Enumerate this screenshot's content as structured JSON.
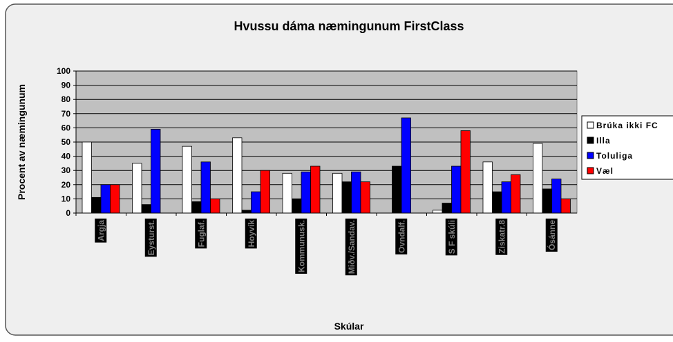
{
  "chart_data": {
    "type": "bar",
    "title": "Hvussu dáma næmingunum FirstClass",
    "x_label": "Skúlar",
    "y_label": "Procent av næmingunum",
    "categories": [
      "Argja",
      "Eysturst.",
      "Fuglaf.",
      "Hoyvík",
      "Kommunusk.",
      "Miðv./Sandav.",
      "Ovndalf.",
      "S F skúli",
      "Ziskatr.8",
      "Ósánne"
    ],
    "series": [
      {
        "name": "Brúka ikki FC",
        "color": "#ffffff",
        "values": [
          50,
          35,
          47,
          53,
          28,
          28,
          0,
          2,
          36,
          49
        ]
      },
      {
        "name": "Illa",
        "color": "#000000",
        "values": [
          11,
          6,
          8,
          2,
          10,
          22,
          33,
          7,
          15,
          17
        ]
      },
      {
        "name": "Toluliga",
        "color": "#0000ff",
        "values": [
          20,
          59,
          36,
          15,
          29,
          29,
          67,
          33,
          22,
          24
        ]
      },
      {
        "name": "Væl",
        "color": "#ff0000",
        "values": [
          20,
          0,
          10,
          30,
          33,
          22,
          0,
          58,
          27,
          10
        ]
      }
    ],
    "ylim": [
      0,
      100
    ],
    "yticks": [
      0,
      10,
      20,
      30,
      40,
      50,
      60,
      70,
      80,
      90,
      100
    ],
    "grid": true,
    "legend": "right"
  }
}
